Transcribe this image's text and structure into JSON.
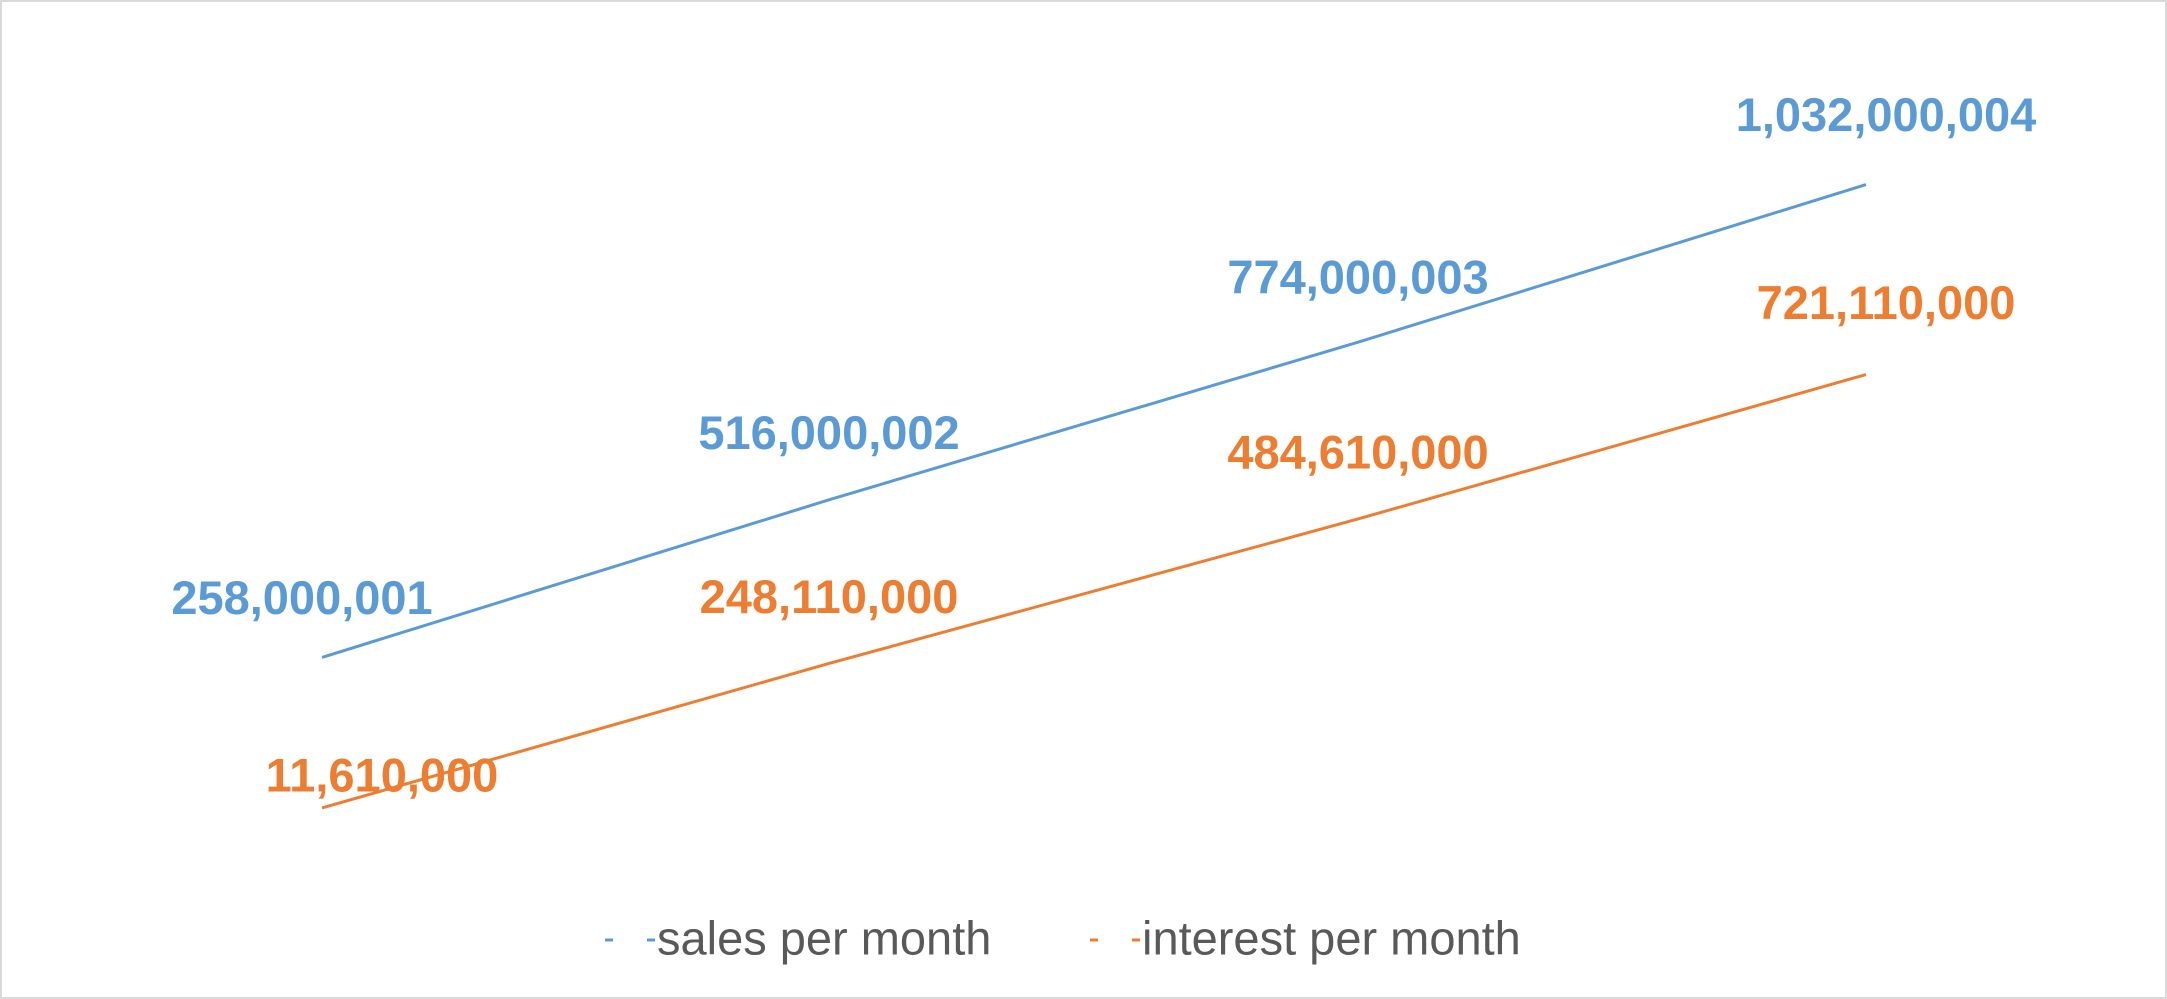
{
  "chart_data": {
    "type": "line",
    "categories": [
      null,
      null,
      null,
      null
    ],
    "series": [
      {
        "name": "sales per month",
        "color": "#5b9bd5",
        "values": [
          258000001,
          516000002,
          774000003,
          1032000004
        ],
        "value_labels": [
          "258,000,001",
          "516,000,002",
          "774,000,003",
          "1,032,000,004"
        ]
      },
      {
        "name": "interest per month",
        "color": "#ed7d31",
        "values": [
          11610000,
          248110000,
          484610000,
          721110000
        ],
        "value_labels": [
          "11,610,000",
          "248,110,000",
          "484,610,000",
          "721,110,000"
        ]
      }
    ],
    "ylim": [
      0,
      1200000000
    ],
    "grid": false,
    "legend": "bottom"
  }
}
